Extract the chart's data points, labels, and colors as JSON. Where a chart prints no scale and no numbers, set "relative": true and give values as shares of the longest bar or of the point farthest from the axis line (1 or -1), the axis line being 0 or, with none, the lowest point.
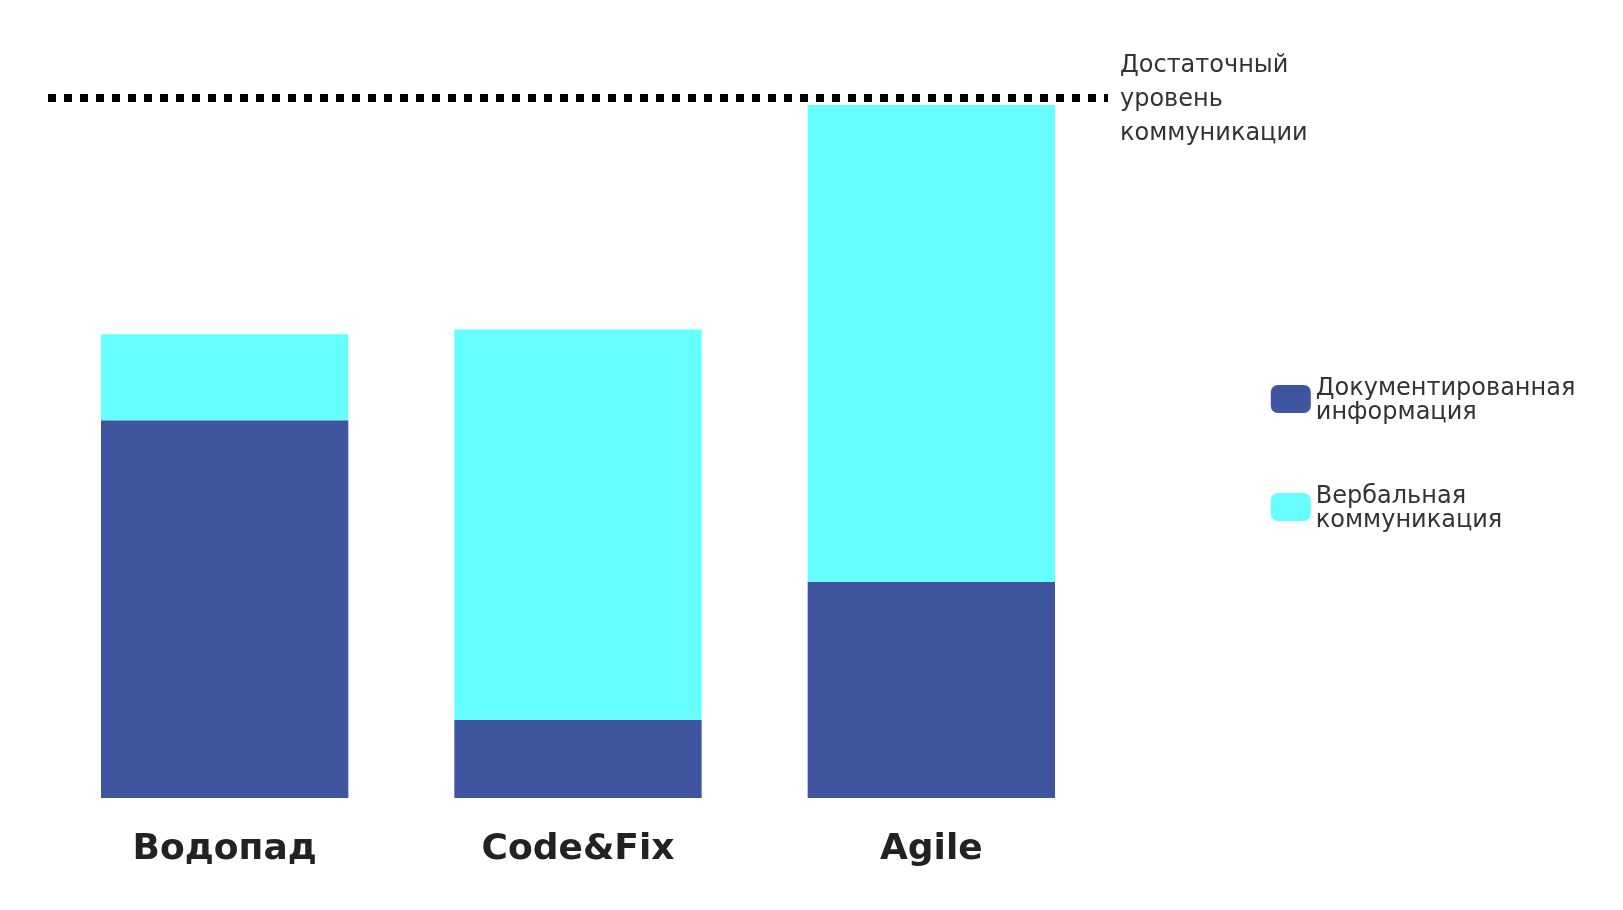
{
  "chart_data": {
    "type": "bar",
    "stacked": true,
    "relative": true,
    "categories": [
      "Водопад",
      "Code&Fix",
      "Agile"
    ],
    "series": [
      {
        "name": "Документированная информация",
        "color": "#3f55a0",
        "values": [
          0.545,
          0.113,
          0.312
        ]
      },
      {
        "name": "Вербальная коммуникация",
        "color": "#66ffff",
        "values": [
          0.124,
          0.563,
          0.688
        ]
      }
    ],
    "ref_lines": [
      {
        "axis": "y",
        "value": 1.01,
        "label": "Достаточный уровень коммуникации",
        "line_style": "dotted",
        "color": "#000000"
      }
    ],
    "legend": "right"
  }
}
